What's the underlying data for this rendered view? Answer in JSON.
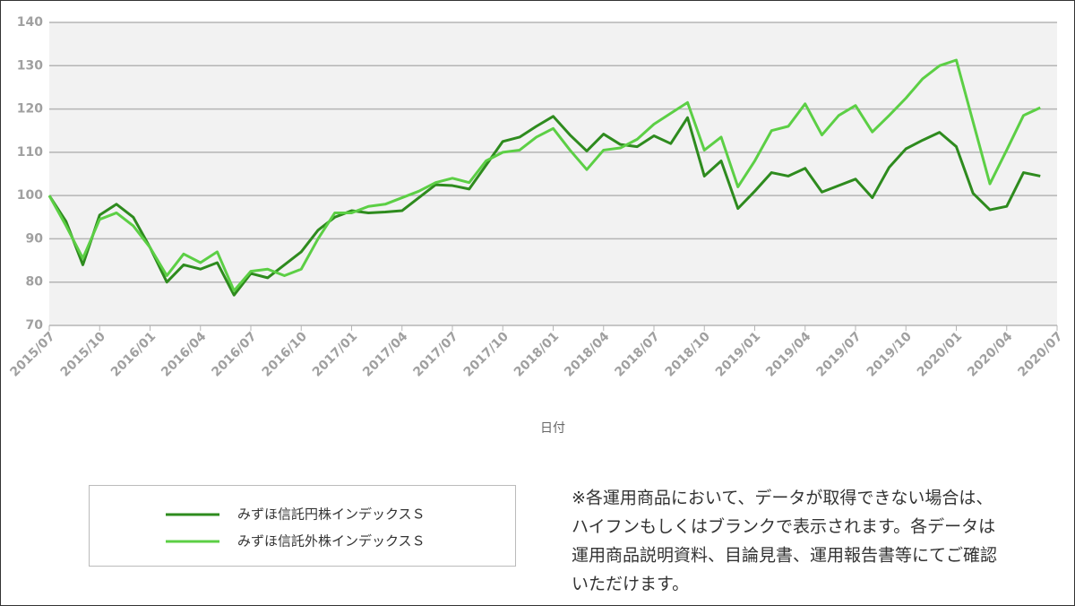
{
  "chart_data": {
    "type": "line",
    "x_label": "日付",
    "categories": [
      "2015/07",
      null,
      null,
      "2015/10",
      null,
      null,
      "2016/01",
      null,
      null,
      "2016/04",
      null,
      null,
      "2016/07",
      null,
      null,
      "2016/10",
      null,
      null,
      "2017/01",
      null,
      null,
      "2017/04",
      null,
      null,
      "2017/07",
      null,
      null,
      "2017/10",
      null,
      null,
      "2018/01",
      null,
      null,
      "2018/04",
      null,
      null,
      "2018/07",
      null,
      null,
      "2018/10",
      null,
      null,
      "2019/01",
      null,
      null,
      "2019/04",
      null,
      null,
      "2019/07",
      null,
      null,
      "2019/10",
      null,
      null,
      "2020/01",
      null,
      null,
      "2020/04",
      null,
      null,
      "2020/07"
    ],
    "series": [
      {
        "name": "みずほ信託円株インデックスＳ",
        "color": "#2e8b1e",
        "values": [
          100,
          94,
          84,
          95.5,
          98,
          95,
          88,
          80,
          84,
          83,
          84.5,
          77,
          82,
          81,
          84,
          87,
          92,
          95,
          96.5,
          96,
          96.2,
          96.5,
          99.5,
          102.5,
          102.3,
          101.5,
          107,
          112.5,
          113.5,
          116,
          118.3,
          114,
          110.3,
          114.2,
          111.8,
          111.3,
          113.8,
          112,
          118,
          104.5,
          108,
          97,
          101,
          105.3,
          104.5,
          106.3,
          100.8,
          102.3,
          103.8,
          99.5,
          106.5,
          110.8,
          112.8,
          114.6,
          111.3,
          100.5,
          96.7,
          97.5,
          105.3,
          104.5,
          null
        ]
      },
      {
        "name": "みずほ信託外株インデックスＳ",
        "color": "#5ccf45",
        "values": [
          100,
          93,
          85.5,
          94.5,
          96,
          93,
          88,
          81.5,
          86.5,
          84.5,
          87,
          78,
          82.5,
          83,
          81.5,
          83,
          90,
          96,
          96,
          97.5,
          98,
          99.5,
          101,
          103,
          104,
          103,
          108,
          110,
          110.5,
          113.5,
          115.5,
          110.5,
          106,
          110.5,
          111,
          113,
          116.5,
          119,
          121.5,
          110.5,
          113.5,
          102,
          108,
          115,
          116,
          121.2,
          114,
          118.5,
          120.8,
          114.7,
          118.5,
          122.5,
          127,
          130,
          131.3,
          117,
          102.7,
          110.5,
          118.5,
          120.3,
          null
        ]
      }
    ],
    "ylim": [
      70,
      140
    ],
    "yticks": [
      70,
      80,
      90,
      100,
      110,
      120,
      130,
      140
    ],
    "grid": true,
    "note": [
      "※各運用商品において、データが取得できない場合は、",
      "ハイフンもしくはブランクで表示されます。各データは",
      "運用商品説明資料、目論見書、運用報告書等にてご確認",
      "いただけます。"
    ]
  }
}
